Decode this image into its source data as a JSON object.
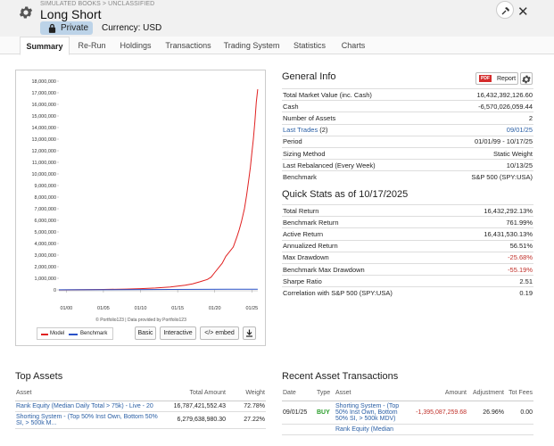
{
  "header": {
    "breadcrumb": "SIMULATED BOOKS > UNCLASSIFIED",
    "title": "Long Short",
    "privacy_label": "Private",
    "currency_label": "Currency: USD",
    "close_label": "✕"
  },
  "tabs": [
    "Summary",
    "Re-Run",
    "Holdings",
    "Transactions",
    "Trading System",
    "Statistics",
    "Charts"
  ],
  "chart_data": {
    "type": "line",
    "ylabels": [
      "18,000,000",
      "17,000,000",
      "16,000,000",
      "15,000,000",
      "14,000,000",
      "13,000,000",
      "12,000,000",
      "11,000,000",
      "10,000,000",
      "9,000,000",
      "8,000,000",
      "7,000,000",
      "6,000,000",
      "5,000,000",
      "4,000,000",
      "3,000,000",
      "2,000,000",
      "1,000,000",
      "0"
    ],
    "ylim": [
      0,
      18000000
    ],
    "xlabels": [
      "01/00",
      "01/05",
      "01/10",
      "01/15",
      "01/20",
      "01/25"
    ],
    "xlim": [
      1999.0,
      2025.8
    ],
    "series": [
      {
        "name": "Model",
        "color": "#e02020",
        "x": [
          1999.0,
          2002,
          2005,
          2008,
          2010,
          2012,
          2014,
          2015,
          2016,
          2017,
          2018,
          2019,
          2019.5,
          2020,
          2020.5,
          2021,
          2021.5,
          2022,
          2022.5,
          2023,
          2023.3,
          2023.6,
          2024,
          2024.3,
          2024.6,
          2024.8,
          2025.0,
          2025.2,
          2025.4,
          2025.6,
          2025.79
        ],
        "y": [
          1000,
          20000,
          40000,
          70000,
          110000,
          160000,
          250000,
          320000,
          410000,
          520000,
          700000,
          900000,
          1100000,
          1500000,
          1900000,
          2300000,
          2900000,
          3300000,
          3700000,
          4600000,
          5200000,
          5900000,
          7000000,
          8200000,
          9600000,
          10600000,
          11800000,
          13000000,
          14500000,
          16200000,
          17300000
        ]
      },
      {
        "name": "Benchmark",
        "color": "#2a52c8",
        "x": [
          1999.0,
          2025.79
        ],
        "y": [
          10000,
          60000
        ]
      }
    ],
    "footer": "© Portfolio123 | Data provided by Portfolio123",
    "buttons": {
      "basic": "Basic",
      "interactive": "Interactive",
      "embed": "</> embed"
    }
  },
  "general_info": {
    "title": "General Info",
    "report_badge": "PDF",
    "report_label": "Report",
    "rows": [
      {
        "label": "Total Market Value (inc. Cash)",
        "value": "16,432,392,126.60"
      },
      {
        "label": "Cash",
        "value": "-6,570,026,059.44"
      },
      {
        "label": "Number of Assets",
        "value": "2"
      },
      {
        "label": "Last Trades",
        "count": "(2)",
        "value": "09/01/25"
      },
      {
        "label": "Period",
        "value": "01/01/99 - 10/17/25"
      },
      {
        "label": "Sizing Method",
        "value": "Static Weight"
      },
      {
        "label": "Last Rebalanced (Every Week)",
        "value": "10/13/25"
      },
      {
        "label": "Benchmark",
        "value": "S&P 500 (SPY:USA)"
      }
    ]
  },
  "quick_stats": {
    "title": "Quick Stats as of 10/17/2025",
    "rows": [
      {
        "label": "Total Return",
        "value": "16,432,292.13%"
      },
      {
        "label": "Benchmark Return",
        "value": "761.99%"
      },
      {
        "label": "Active Return",
        "value": "16,431,530.13%"
      },
      {
        "label": "Annualized Return",
        "value": "56.51%"
      },
      {
        "label": "Max Drawdown",
        "value": "-25.68%"
      },
      {
        "label": "Benchmark Max Drawdown",
        "value": "-55.19%"
      },
      {
        "label": "Sharpe Ratio",
        "value": "2.51"
      },
      {
        "label": "Correlation with S&P 500 (SPY:USA)",
        "value": "0.19"
      }
    ]
  },
  "top_assets": {
    "title": "Top Assets",
    "headers": [
      "Asset",
      "Total Amount",
      "Weight"
    ],
    "rows": [
      {
        "asset": "Rank Equity (Median Daily Total > 75k) - Live - 20",
        "amount": "16,787,421,552.43",
        "weight": "72.78%"
      },
      {
        "asset": "Shorting System - (Top 50% Inst Own, Bottom 50% SI, > 500k M...",
        "amount": "6,279,638,980.30",
        "weight": "27.22%"
      }
    ]
  },
  "recent_transactions": {
    "title": "Recent Asset Transactions",
    "headers": [
      "Date",
      "Type",
      "Asset",
      "Amount",
      "Adjustment",
      "Tot Fees"
    ],
    "rows": [
      {
        "date": "09/01/25",
        "type": "BUY",
        "asset": "Shorting System - (Top 50% Inst Own, Bottom 50% SI, > 500k MDV)",
        "amount": "-1,395,087,259.68",
        "adjustment": "26.96%",
        "fees": "0.00"
      },
      {
        "date": "",
        "type": "",
        "asset": "Rank Equity (Median",
        "amount": "",
        "adjustment": "",
        "fees": ""
      }
    ]
  }
}
